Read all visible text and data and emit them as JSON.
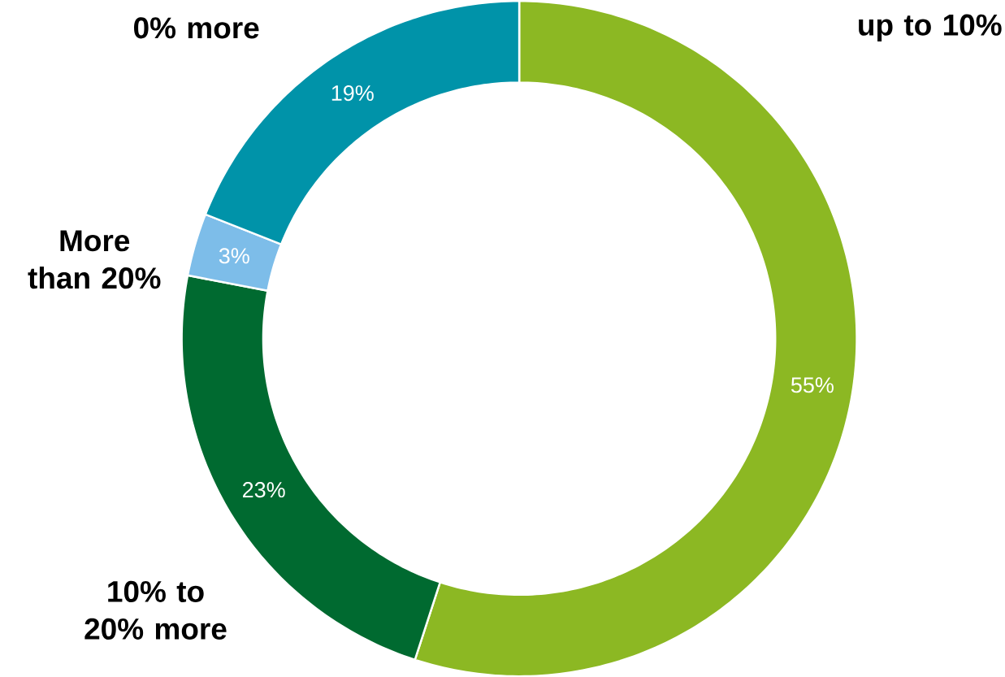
{
  "chart_data": {
    "type": "donut",
    "categories": [
      "up to 10%",
      "10% to 20% more",
      "More than 20%",
      "0% more"
    ],
    "values": [
      55,
      23,
      3,
      19
    ],
    "value_labels": [
      "55%",
      "23%",
      "3%",
      "19%"
    ],
    "colors": [
      "#8cb823",
      "#006a30",
      "#7dbde9",
      "#0093a9"
    ]
  }
}
